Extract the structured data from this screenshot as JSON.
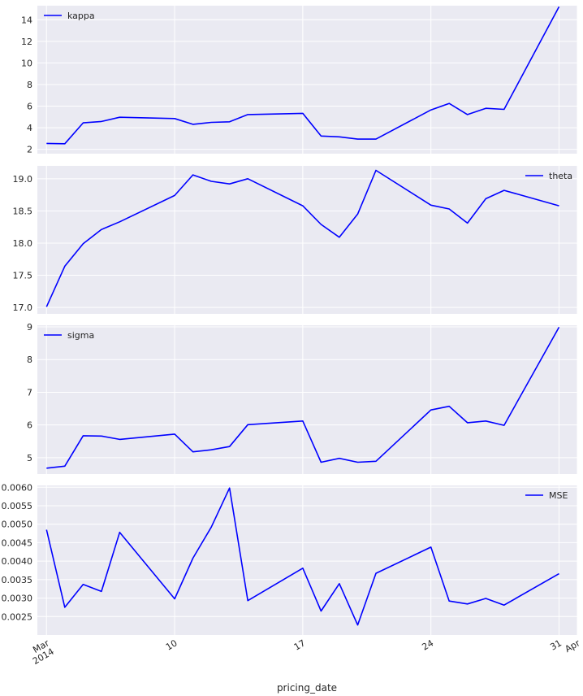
{
  "chart_data": {
    "type": "line",
    "x": [
      "2014-03-03",
      "2014-03-04",
      "2014-03-05",
      "2014-03-06",
      "2014-03-07",
      "2014-03-10",
      "2014-03-11",
      "2014-03-12",
      "2014-03-13",
      "2014-03-14",
      "2014-03-17",
      "2014-03-18",
      "2014-03-19",
      "2014-03-20",
      "2014-03-21",
      "2014-03-24",
      "2014-03-25",
      "2014-03-26",
      "2014-03-27",
      "2014-03-28",
      "2014-03-31"
    ],
    "xlabel": "pricing_date",
    "x_ticks": [
      {
        "date": "2014-03-03",
        "label": "Mar",
        "label2": "2014"
      },
      {
        "date": "2014-03-10",
        "label": "10"
      },
      {
        "date": "2014-03-17",
        "label": "17"
      },
      {
        "date": "2014-03-24",
        "label": "24"
      },
      {
        "date": "2014-03-31",
        "label": "31"
      },
      {
        "date": "2014-04-01",
        "label": "Apr"
      }
    ],
    "grid": true,
    "line_color": "#0000ff",
    "background": "#eaeaf2",
    "panels": [
      {
        "legend": "kappa",
        "legend_position": "top-left",
        "ylim": [
          1.6,
          15.3
        ],
        "yticks": [
          "2",
          "4",
          "6",
          "8",
          "10",
          "12",
          "14"
        ],
        "values": [
          2.55,
          2.52,
          4.45,
          4.58,
          4.97,
          4.85,
          4.32,
          4.5,
          4.55,
          5.22,
          5.33,
          3.23,
          3.16,
          2.95,
          2.95,
          5.65,
          6.25,
          5.22,
          5.8,
          5.7,
          15.2
        ]
      },
      {
        "legend": "theta",
        "legend_position": "top-right",
        "ylim": [
          16.9,
          19.2
        ],
        "yticks": [
          "17.0",
          "17.5",
          "18.0",
          "18.5",
          "19.0"
        ],
        "values": [
          17.01,
          17.64,
          17.99,
          18.21,
          18.33,
          18.74,
          19.06,
          18.96,
          18.92,
          19.0,
          18.58,
          18.29,
          18.09,
          18.45,
          19.13,
          18.59,
          18.53,
          18.31,
          18.69,
          18.82,
          18.58
        ]
      },
      {
        "legend": "sigma",
        "legend_position": "top-left",
        "ylim": [
          4.5,
          9.05
        ],
        "yticks": [
          "5",
          "6",
          "7",
          "8",
          "9"
        ],
        "values": [
          4.68,
          4.74,
          5.67,
          5.66,
          5.56,
          5.72,
          5.18,
          5.24,
          5.34,
          6.01,
          6.12,
          4.86,
          4.98,
          4.86,
          4.89,
          6.46,
          6.57,
          6.07,
          6.12,
          5.99,
          8.99
        ]
      },
      {
        "legend": "MSE",
        "legend_position": "top-right",
        "ylim": [
          0.002,
          0.00605
        ],
        "yticks": [
          "0.0025",
          "0.0030",
          "0.0035",
          "0.0040",
          "0.0045",
          "0.0050",
          "0.0055",
          "0.0060"
        ],
        "values": [
          0.00485,
          0.00275,
          0.00337,
          0.00318,
          0.00478,
          0.00298,
          0.00408,
          0.00492,
          0.00598,
          0.00293,
          0.00381,
          0.00265,
          0.00339,
          0.00227,
          0.00367,
          0.00438,
          0.00292,
          0.00284,
          0.00299,
          0.00281,
          0.00366
        ]
      }
    ]
  }
}
